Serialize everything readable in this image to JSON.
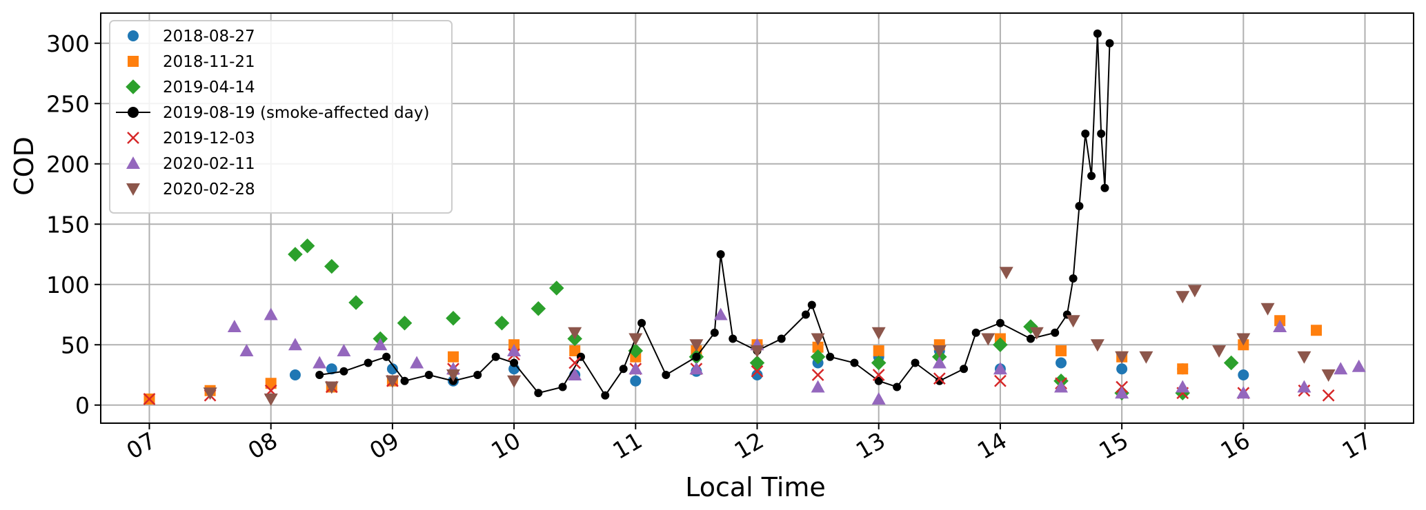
{
  "chart_data": {
    "type": "scatter",
    "xlabel": "Local Time",
    "ylabel": "COD",
    "x_unit": "hour",
    "xlim": [
      6.6,
      17.4
    ],
    "ylim": [
      -15,
      325
    ],
    "xticks": [
      7,
      8,
      9,
      10,
      11,
      12,
      13,
      14,
      15,
      16,
      17
    ],
    "xtick_labels": [
      "07",
      "08",
      "09",
      "10",
      "11",
      "12",
      "13",
      "14",
      "15",
      "16",
      "17"
    ],
    "yticks": [
      0,
      50,
      100,
      150,
      200,
      250,
      300
    ],
    "ytick_labels": [
      "0",
      "50",
      "100",
      "150",
      "200",
      "250",
      "300"
    ],
    "grid": true,
    "legend_position": "top-left",
    "series": [
      {
        "name": "2018-08-27",
        "marker": "circle",
        "color": "#1f77b4",
        "x": [
          8.2,
          8.5,
          9.0,
          9.5,
          10.0,
          10.5,
          11.0,
          11.5,
          12.0,
          12.5,
          13.0,
          13.5,
          14.0,
          14.5,
          15.0,
          15.5,
          16.0
        ],
        "y": [
          25,
          30,
          30,
          20,
          30,
          25,
          20,
          28,
          25,
          35,
          40,
          45,
          30,
          35,
          30,
          30,
          25
        ]
      },
      {
        "name": "2018-11-21",
        "marker": "square",
        "color": "#ff7f0e",
        "x": [
          7.0,
          7.5,
          8.0,
          8.5,
          9.0,
          9.5,
          10.0,
          10.5,
          11.0,
          11.5,
          12.0,
          12.5,
          13.0,
          13.5,
          14.0,
          14.5,
          15.0,
          15.5,
          16.0,
          16.3,
          16.6
        ],
        "y": [
          5,
          12,
          18,
          15,
          20,
          40,
          50,
          45,
          40,
          45,
          50,
          48,
          45,
          50,
          55,
          45,
          40,
          30,
          50,
          70,
          62
        ]
      },
      {
        "name": "2019-04-14",
        "marker": "diamond",
        "color": "#2ca02c",
        "x": [
          8.2,
          8.3,
          8.5,
          8.7,
          8.9,
          9.1,
          9.5,
          9.9,
          10.2,
          10.35,
          10.5,
          11.0,
          11.5,
          12.0,
          12.5,
          13.0,
          13.5,
          14.0,
          14.25,
          14.5,
          15.0,
          15.5,
          15.9
        ],
        "y": [
          125,
          132,
          115,
          85,
          55,
          68,
          72,
          68,
          80,
          97,
          55,
          45,
          40,
          35,
          40,
          35,
          40,
          50,
          65,
          20,
          10,
          10,
          35
        ]
      },
      {
        "name": "2019-08-19 (smoke-affected day)",
        "marker": "circle-line",
        "color": "#000000",
        "x": [
          8.4,
          8.6,
          8.8,
          8.95,
          9.1,
          9.3,
          9.5,
          9.7,
          9.85,
          10.0,
          10.2,
          10.4,
          10.55,
          10.75,
          10.9,
          11.05,
          11.25,
          11.5,
          11.65,
          11.7,
          11.8,
          12.0,
          12.2,
          12.4,
          12.45,
          12.6,
          12.8,
          13.0,
          13.15,
          13.3,
          13.5,
          13.7,
          13.8,
          14.0,
          14.25,
          14.45,
          14.55,
          14.6,
          14.65,
          14.7,
          14.75,
          14.8,
          14.83,
          14.86,
          14.9
        ],
        "y": [
          25,
          28,
          35,
          40,
          20,
          25,
          20,
          25,
          40,
          35,
          10,
          15,
          40,
          8,
          30,
          68,
          25,
          40,
          60,
          125,
          55,
          45,
          55,
          75,
          83,
          40,
          35,
          20,
          15,
          35,
          20,
          30,
          60,
          68,
          55,
          60,
          75,
          105,
          165,
          225,
          190,
          308,
          225,
          180,
          300
        ]
      },
      {
        "name": "2019-12-03",
        "marker": "x",
        "color": "#d62728",
        "x": [
          7.0,
          7.5,
          8.0,
          8.5,
          9.0,
          9.5,
          10.0,
          10.5,
          11.0,
          11.5,
          12.0,
          12.5,
          13.0,
          13.5,
          14.0,
          14.5,
          15.0,
          15.5,
          16.0,
          16.5,
          16.7
        ],
        "y": [
          5,
          8,
          12,
          15,
          20,
          30,
          42,
          35,
          30,
          30,
          28,
          25,
          25,
          22,
          20,
          18,
          15,
          10,
          10,
          12,
          8
        ]
      },
      {
        "name": "2020-02-11",
        "marker": "triangle-up",
        "color": "#9467bd",
        "x": [
          7.7,
          7.8,
          8.0,
          8.2,
          8.4,
          8.6,
          8.9,
          9.2,
          9.5,
          10.0,
          10.5,
          11.0,
          11.5,
          11.7,
          12.0,
          12.5,
          13.0,
          13.5,
          14.0,
          14.5,
          15.0,
          15.5,
          16.0,
          16.3,
          16.5,
          16.8,
          16.95
        ],
        "y": [
          65,
          45,
          75,
          50,
          35,
          45,
          50,
          35,
          30,
          45,
          25,
          30,
          30,
          75,
          50,
          15,
          5,
          35,
          30,
          15,
          10,
          15,
          10,
          65,
          15,
          30,
          32
        ]
      },
      {
        "name": "2020-02-28",
        "marker": "triangle-down",
        "color": "#8c564b",
        "x": [
          7.5,
          8.0,
          8.5,
          9.0,
          9.5,
          10.0,
          10.5,
          11.0,
          11.5,
          12.0,
          12.5,
          13.0,
          13.5,
          13.9,
          14.05,
          14.3,
          14.6,
          14.8,
          15.0,
          15.2,
          15.5,
          15.6,
          15.8,
          16.0,
          16.2,
          16.5,
          16.7
        ],
        "y": [
          10,
          5,
          15,
          20,
          25,
          20,
          60,
          55,
          50,
          45,
          55,
          60,
          45,
          55,
          110,
          60,
          70,
          50,
          40,
          40,
          90,
          95,
          45,
          55,
          80,
          40,
          25
        ]
      }
    ]
  }
}
